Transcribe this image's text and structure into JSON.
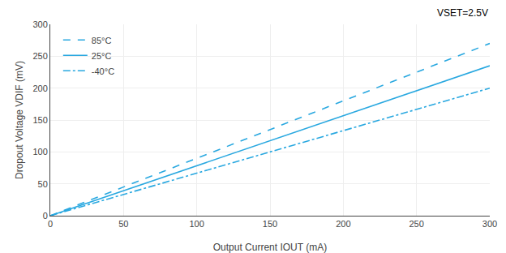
{
  "chart_data": {
    "type": "line",
    "x_label": "Output Current IOUT (mA)",
    "y_label": "Dropout Voltage VDIF (mV)",
    "annotations": [
      "VSET=2.5V"
    ],
    "x": [
      0,
      300
    ],
    "series": [
      {
        "name": "85°C",
        "color": "#29a8e0",
        "line_style": "dashed",
        "values": [
          0,
          270
        ]
      },
      {
        "name": "25°C",
        "color": "#29a8e0",
        "line_style": "solid",
        "values": [
          0,
          235
        ]
      },
      {
        "name": "-40°C",
        "color": "#29a8e0",
        "line_style": "dashdot",
        "values": [
          0,
          200
        ]
      }
    ],
    "xlim": [
      0,
      300
    ],
    "ylim": [
      0,
      300
    ],
    "xticks": [
      0,
      50,
      100,
      150,
      200,
      250,
      300
    ],
    "yticks": [
      0,
      50,
      100,
      150,
      200,
      250,
      300
    ],
    "grid": true,
    "legend": "upper left"
  }
}
